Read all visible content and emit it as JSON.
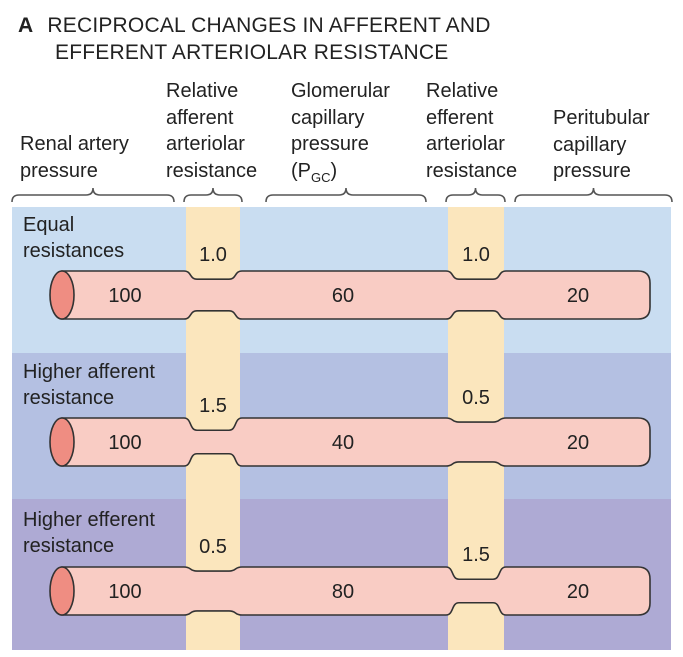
{
  "figure": {
    "panel_letter": "A",
    "title_line1": "RECIPROCAL CHANGES IN AFFERENT AND",
    "title_line2": "EFFERENT ARTERIOLAR RESISTANCE"
  },
  "columns": {
    "renal_artery": "Renal artery\npressure",
    "afferent": "Relative\nafferent\narteriolar\nresistance",
    "glomerular_main": "Glomerular\ncapillary\npressure\n(P",
    "glomerular_sub": "GC",
    "glomerular_close": ")",
    "efferent": "Relative\nefferent\narteriolar\nresistance",
    "peritubular": "Peritubular\ncapillary\npressure"
  },
  "rows": [
    {
      "label": "Equal\nresistances",
      "afferent_resistance": "1.0",
      "efferent_resistance": "1.0",
      "renal_artery_pressure": "100",
      "glomerular_pressure": "60",
      "peritubular_pressure": "20"
    },
    {
      "label": "Higher afferent\nresistance",
      "afferent_resistance": "1.5",
      "efferent_resistance": "0.5",
      "renal_artery_pressure": "100",
      "glomerular_pressure": "40",
      "peritubular_pressure": "20"
    },
    {
      "label": "Higher efferent\nresistance",
      "afferent_resistance": "0.5",
      "efferent_resistance": "1.5",
      "renal_artery_pressure": "100",
      "glomerular_pressure": "80",
      "peritubular_pressure": "20"
    }
  ],
  "colors": {
    "row_backgrounds": [
      "#c9ddf1",
      "#b4c0e2",
      "#aeaad4"
    ],
    "arteriole_band": "#fbe6bd",
    "vessel_fill": "#f9ccc4",
    "vessel_end": "#ef8d82",
    "outline": "#333333"
  }
}
